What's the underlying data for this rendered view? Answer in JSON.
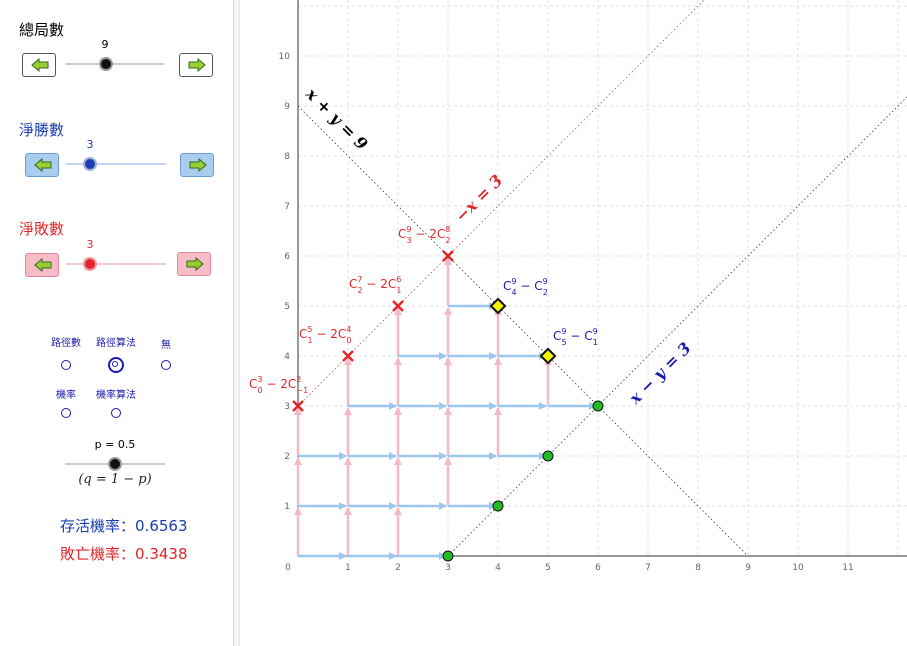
{
  "sliders": {
    "total_games": {
      "label": "總局數",
      "value": "9",
      "color": "#000000"
    },
    "net_wins": {
      "label": "淨勝數",
      "value": "3",
      "color": "#1a3db0"
    },
    "net_losses": {
      "label": "淨敗數",
      "value": "3",
      "color": "#e0262a"
    }
  },
  "modes": {
    "options": [
      "路徑數",
      "路徑算法",
      "無",
      "機率",
      "機率算法"
    ],
    "selected": "路徑算法"
  },
  "probability": {
    "p_label": "p = 0.5",
    "q_formula": "(q = 1 − p)",
    "survive_label": "存活機率：",
    "survive_value": "0.6563",
    "lose_label": "敗亡機率：",
    "lose_value": "0.3438"
  },
  "graph": {
    "x_ticks": [
      "0",
      "1",
      "2",
      "3",
      "4",
      "5",
      "6",
      "7",
      "8",
      "9",
      "10",
      "11"
    ],
    "y_ticks": [
      "1",
      "2",
      "3",
      "4",
      "5",
      "6",
      "7",
      "8",
      "9",
      "10"
    ],
    "line_labels": {
      "sum": "x + y = 9",
      "upper": "−x = 3",
      "lower": "x − y = 3"
    },
    "formula_labels": [
      {
        "main": "C",
        "sup": "3",
        "sub": "0",
        "rest": " − 2C",
        "sup2": "2",
        "sub2": "−1"
      },
      {
        "main": "C",
        "sup": "5",
        "sub": "1",
        "rest": " − 2C",
        "sup2": "4",
        "sub2": "0"
      },
      {
        "main": "C",
        "sup": "7",
        "sub": "2",
        "rest": " − 2C",
        "sup2": "6",
        "sub2": "1"
      },
      {
        "main": "C",
        "sup": "9",
        "sub": "3",
        "rest": " − 2C",
        "sup2": "8",
        "sub2": "2"
      },
      {
        "main": "C",
        "sup": "9",
        "sub": "4",
        "rest": " − C",
        "sup2": "9",
        "sub2": "2"
      },
      {
        "main": "C",
        "sup": "9",
        "sub": "5",
        "rest": " − C",
        "sup2": "9",
        "sub2": "1"
      }
    ],
    "colors": {
      "right_arrow": "#9cc8f0",
      "up_arrow": "#f4b8c6",
      "fail": "#e0262a",
      "win_point": "#22bb22",
      "end_point": "#f4f400",
      "blue_text": "#1a1ab0",
      "red_text": "#e0262a"
    }
  }
}
